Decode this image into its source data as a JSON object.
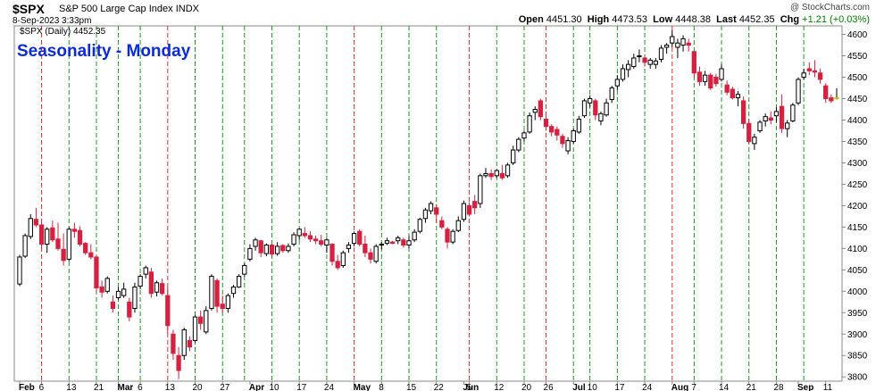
{
  "header": {
    "symbol": "$SPX",
    "name": "S&P 500 Large Cap Index",
    "exchange": "INDX",
    "date": "8-Sep-2023 3:33pm",
    "source": "@ StockCharts.com",
    "open_label": "Open",
    "open": "4451.30",
    "high_label": "High",
    "high": "4473.53",
    "low_label": "Low",
    "low": "4448.38",
    "last_label": "Last",
    "last": "4452.35",
    "chg_label": "Chg",
    "chg": "+1.21 (+0.03%)"
  },
  "chart_data": {
    "type": "candlestick",
    "title": "Seasonality - Monday",
    "legend": "$SPX (Daily) 4452.35",
    "ylim": [
      3790,
      4620
    ],
    "y_ticks": [
      3800,
      3850,
      3900,
      3950,
      4000,
      4050,
      4100,
      4150,
      4200,
      4250,
      4300,
      4350,
      4400,
      4450,
      4500,
      4550,
      4600
    ],
    "x_ticks": [
      {
        "label": "Feb",
        "i": 0,
        "bold": true
      },
      {
        "label": "6",
        "i": 4
      },
      {
        "label": "13",
        "i": 9
      },
      {
        "label": "21",
        "i": 14
      },
      {
        "label": "Mar",
        "i": 18,
        "bold": true
      },
      {
        "label": "6",
        "i": 22
      },
      {
        "label": "13",
        "i": 27
      },
      {
        "label": "20",
        "i": 32
      },
      {
        "label": "27",
        "i": 37
      },
      {
        "label": "Apr",
        "i": 42,
        "bold": true
      },
      {
        "label": "10",
        "i": 46
      },
      {
        "label": "17",
        "i": 51
      },
      {
        "label": "24",
        "i": 56
      },
      {
        "label": "May",
        "i": 61,
        "bold": true
      },
      {
        "label": "8",
        "i": 66
      },
      {
        "label": "15",
        "i": 71
      },
      {
        "label": "22",
        "i": 76
      },
      {
        "label": "Jun",
        "i": 81,
        "bold": true
      },
      {
        "label": "5",
        "i": 82
      },
      {
        "label": "12",
        "i": 87
      },
      {
        "label": "20",
        "i": 92
      },
      {
        "label": "26",
        "i": 96
      },
      {
        "label": "Jul",
        "i": 101,
        "bold": true
      },
      {
        "label": "10",
        "i": 104
      },
      {
        "label": "17",
        "i": 109
      },
      {
        "label": "24",
        "i": 114
      },
      {
        "label": "Aug",
        "i": 119,
        "bold": true
      },
      {
        "label": "7",
        "i": 123
      },
      {
        "label": "14",
        "i": 128
      },
      {
        "label": "21",
        "i": 133
      },
      {
        "label": "28",
        "i": 138
      },
      {
        "label": "Sep",
        "i": 142,
        "bold": true
      },
      {
        "label": "11",
        "i": 147
      }
    ],
    "monday_lines": [
      {
        "i": 4,
        "color": "red"
      },
      {
        "i": 9,
        "color": "green"
      },
      {
        "i": 14,
        "color": "green"
      },
      {
        "i": 18,
        "color": "green"
      },
      {
        "i": 22,
        "color": "green"
      },
      {
        "i": 27,
        "color": "red"
      },
      {
        "i": 32,
        "color": "green"
      },
      {
        "i": 37,
        "color": "green"
      },
      {
        "i": 41,
        "color": "green"
      },
      {
        "i": 46,
        "color": "green"
      },
      {
        "i": 51,
        "color": "green"
      },
      {
        "i": 56,
        "color": "green"
      },
      {
        "i": 61,
        "color": "red"
      },
      {
        "i": 66,
        "color": "green"
      },
      {
        "i": 71,
        "color": "green"
      },
      {
        "i": 76,
        "color": "green"
      },
      {
        "i": 82,
        "color": "red"
      },
      {
        "i": 87,
        "color": "green"
      },
      {
        "i": 92,
        "color": "green"
      },
      {
        "i": 96,
        "color": "red"
      },
      {
        "i": 101,
        "color": "green"
      },
      {
        "i": 104,
        "color": "green"
      },
      {
        "i": 109,
        "color": "green"
      },
      {
        "i": 114,
        "color": "green"
      },
      {
        "i": 119,
        "color": "red"
      },
      {
        "i": 123,
        "color": "green"
      },
      {
        "i": 128,
        "color": "green"
      },
      {
        "i": 133,
        "color": "green"
      },
      {
        "i": 138,
        "color": "green"
      },
      {
        "i": 143,
        "color": "green"
      }
    ],
    "candles": [
      [
        4017,
        4085,
        4012,
        4080
      ],
      [
        4082,
        4135,
        4078,
        4130
      ],
      [
        4128,
        4180,
        4122,
        4170
      ],
      [
        4168,
        4195,
        4150,
        4155
      ],
      [
        4155,
        4160,
        4100,
        4110
      ],
      [
        4110,
        4150,
        4090,
        4145
      ],
      [
        4148,
        4165,
        4115,
        4120
      ],
      [
        4122,
        4160,
        4095,
        4100
      ],
      [
        4098,
        4135,
        4060,
        4072
      ],
      [
        4075,
        4150,
        4070,
        4145
      ],
      [
        4145,
        4160,
        4125,
        4140
      ],
      [
        4142,
        4152,
        4105,
        4110
      ],
      [
        4112,
        4115,
        4085,
        4090
      ],
      [
        4090,
        4110,
        4075,
        4080
      ],
      [
        4080,
        4082,
        3998,
        4008
      ],
      [
        4010,
        4025,
        3985,
        3998
      ],
      [
        4000,
        4035,
        3995,
        4030
      ],
      [
        3975,
        3990,
        3950,
        3960
      ],
      [
        3985,
        4010,
        3980,
        4000
      ],
      [
        3990,
        4020,
        3985,
        4005
      ],
      [
        3975,
        3985,
        3930,
        3940
      ],
      [
        3960,
        4020,
        3950,
        4010
      ],
      [
        4012,
        4040,
        4005,
        4035
      ],
      [
        4040,
        4060,
        4030,
        4055
      ],
      [
        4045,
        4055,
        3985,
        3995
      ],
      [
        3998,
        4025,
        3988,
        4020
      ],
      [
        4018,
        4030,
        3990,
        3995
      ],
      [
        3990,
        4010,
        3900,
        3920
      ],
      [
        3900,
        3910,
        3840,
        3855
      ],
      [
        3850,
        3870,
        3795,
        3815
      ],
      [
        3850,
        3915,
        3840,
        3910
      ],
      [
        3885,
        3895,
        3860,
        3870
      ],
      [
        3885,
        3945,
        3880,
        3940
      ],
      [
        3940,
        3955,
        3910,
        3925
      ],
      [
        3905,
        3965,
        3900,
        3955
      ],
      [
        3960,
        4040,
        3955,
        4035
      ],
      [
        4025,
        4030,
        3950,
        3965
      ],
      [
        3970,
        3990,
        3950,
        3960
      ],
      [
        3960,
        3995,
        3950,
        3990
      ],
      [
        3995,
        4015,
        3985,
        4010
      ],
      [
        4010,
        4040,
        4008,
        4035
      ],
      [
        4040,
        4065,
        4035,
        4060
      ],
      [
        4075,
        4110,
        4070,
        4100
      ],
      [
        4105,
        4125,
        4095,
        4120
      ],
      [
        4118,
        4120,
        4080,
        4090
      ],
      [
        4088,
        4112,
        4082,
        4108
      ],
      [
        4108,
        4112,
        4080,
        4087
      ],
      [
        4088,
        4115,
        4083,
        4105
      ],
      [
        4107,
        4110,
        4090,
        4095
      ],
      [
        4095,
        4112,
        4090,
        4105
      ],
      [
        4110,
        4138,
        4105,
        4132
      ],
      [
        4130,
        4148,
        4120,
        4145
      ],
      [
        4135,
        4150,
        4125,
        4130
      ],
      [
        4130,
        4140,
        4115,
        4122
      ],
      [
        4122,
        4130,
        4110,
        4118
      ],
      [
        4118,
        4132,
        4105,
        4110
      ],
      [
        4108,
        4125,
        4090,
        4120
      ],
      [
        4110,
        4112,
        4060,
        4070
      ],
      [
        4070,
        4085,
        4050,
        4055
      ],
      [
        4060,
        4095,
        4055,
        4090
      ],
      [
        4100,
        4115,
        4090,
        4108
      ],
      [
        4112,
        4140,
        4105,
        4135
      ],
      [
        4140,
        4145,
        4105,
        4110
      ],
      [
        4110,
        4130,
        4080,
        4090
      ],
      [
        4090,
        4100,
        4065,
        4075
      ],
      [
        4070,
        4110,
        4065,
        4105
      ],
      [
        4108,
        4115,
        4098,
        4110
      ],
      [
        4112,
        4125,
        4108,
        4118
      ],
      [
        4115,
        4118,
        4110,
        4112
      ],
      [
        4118,
        4130,
        4110,
        4125
      ],
      [
        4120,
        4125,
        4102,
        4108
      ],
      [
        4108,
        4130,
        4100,
        4118
      ],
      [
        4120,
        4145,
        4115,
        4138
      ],
      [
        4140,
        4172,
        4135,
        4168
      ],
      [
        4170,
        4195,
        4160,
        4190
      ],
      [
        4188,
        4210,
        4180,
        4205
      ],
      [
        4195,
        4202,
        4160,
        4180
      ],
      [
        4165,
        4175,
        4145,
        4150
      ],
      [
        4145,
        4150,
        4100,
        4115
      ],
      [
        4115,
        4145,
        4110,
        4140
      ],
      [
        4142,
        4175,
        4138,
        4165
      ],
      [
        4168,
        4212,
        4162,
        4205
      ],
      [
        4200,
        4208,
        4175,
        4180
      ],
      [
        4210,
        4225,
        4180,
        4195
      ],
      [
        4205,
        4275,
        4195,
        4270
      ],
      [
        4270,
        4288,
        4265,
        4275
      ],
      [
        4275,
        4285,
        4260,
        4268
      ],
      [
        4270,
        4285,
        4265,
        4282
      ],
      [
        4275,
        4295,
        4260,
        4265
      ],
      [
        4270,
        4300,
        4265,
        4295
      ],
      [
        4300,
        4340,
        4295,
        4330
      ],
      [
        4330,
        4360,
        4325,
        4355
      ],
      [
        4358,
        4375,
        4350,
        4370
      ],
      [
        4372,
        4418,
        4368,
        4410
      ],
      [
        4418,
        4432,
        4400,
        4425
      ],
      [
        4445,
        4450,
        4400,
        4408
      ],
      [
        4402,
        4410,
        4375,
        4385
      ],
      [
        4385,
        4390,
        4362,
        4372
      ],
      [
        4378,
        4385,
        4352,
        4365
      ],
      [
        4362,
        4368,
        4335,
        4345
      ],
      [
        4328,
        4360,
        4320,
        4352
      ],
      [
        4350,
        4380,
        4345,
        4375
      ],
      [
        4372,
        4410,
        4368,
        4402
      ],
      [
        4410,
        4450,
        4405,
        4445
      ],
      [
        4440,
        4458,
        4430,
        4450
      ],
      [
        4445,
        4450,
        4400,
        4412
      ],
      [
        4398,
        4420,
        4388,
        4415
      ],
      [
        4412,
        4450,
        4408,
        4440
      ],
      [
        4448,
        4480,
        4440,
        4475
      ],
      [
        4480,
        4505,
        4470,
        4495
      ],
      [
        4495,
        4530,
        4490,
        4520
      ],
      [
        4518,
        4540,
        4500,
        4530
      ],
      [
        4525,
        4555,
        4520,
        4545
      ],
      [
        4548,
        4565,
        4535,
        4550
      ],
      [
        4545,
        4550,
        4525,
        4535
      ],
      [
        4530,
        4545,
        4520,
        4540
      ],
      [
        4530,
        4545,
        4520,
        4538
      ],
      [
        4542,
        4575,
        4535,
        4568
      ],
      [
        4570,
        4580,
        4555,
        4575
      ],
      [
        4580,
        4610,
        4570,
        4595
      ],
      [
        4570,
        4590,
        4545,
        4580
      ],
      [
        4575,
        4598,
        4560,
        4590
      ],
      [
        4580,
        4590,
        4560,
        4575
      ],
      [
        4560,
        4562,
        4500,
        4510
      ],
      [
        4512,
        4525,
        4480,
        4490
      ],
      [
        4490,
        4515,
        4480,
        4505
      ],
      [
        4505,
        4510,
        4470,
        4475
      ],
      [
        4500,
        4508,
        4478,
        4485
      ],
      [
        4495,
        4530,
        4490,
        4520
      ],
      [
        4482,
        4492,
        4458,
        4465
      ],
      [
        4472,
        4478,
        4448,
        4452
      ],
      [
        4452,
        4468,
        4432,
        4460
      ],
      [
        4445,
        4455,
        4380,
        4392
      ],
      [
        4392,
        4402,
        4345,
        4350
      ],
      [
        4345,
        4368,
        4330,
        4360
      ],
      [
        4375,
        4400,
        4370,
        4395
      ],
      [
        4398,
        4415,
        4385,
        4408
      ],
      [
        4405,
        4420,
        4390,
        4400
      ],
      [
        4410,
        4430,
        4395,
        4420
      ],
      [
        4432,
        4460,
        4370,
        4380
      ],
      [
        4380,
        4400,
        4360,
        4393
      ],
      [
        4398,
        4440,
        4395,
        4435
      ],
      [
        4440,
        4500,
        4435,
        4495
      ],
      [
        4500,
        4520,
        4495,
        4510
      ],
      [
        4520,
        4535,
        4505,
        4515
      ],
      [
        4515,
        4540,
        4500,
        4512
      ],
      [
        4510,
        4520,
        4485,
        4495
      ],
      [
        4480,
        4486,
        4440,
        4450
      ],
      [
        4452,
        4460,
        4440,
        4445
      ],
      [
        4451,
        4474,
        4448,
        4452
      ]
    ]
  },
  "colors": {
    "up": "#000000",
    "down": "#d62040",
    "grid_red": "#e03030",
    "grid_green": "#1a9a1a",
    "title": "#0a2bdc",
    "last": "#f5f07a"
  }
}
